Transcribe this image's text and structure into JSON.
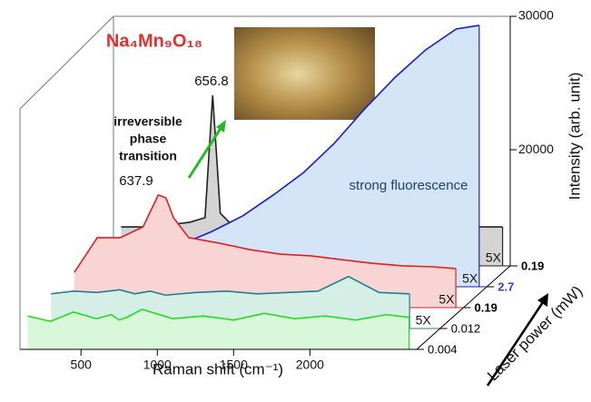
{
  "chart_data": {
    "type": "waterfall",
    "title": "Na₄Mn₉O₁₈",
    "x_label": "Raman shift (cm⁻¹)",
    "y_label": "Intensity (arb. unit)",
    "z_label": "Laser power (mW)",
    "xlim": [
      100,
      2700
    ],
    "xticks": [
      500,
      1000,
      1500,
      2000
    ],
    "ylim": [
      11300,
      30000
    ],
    "yticks": [
      20000,
      30000
    ],
    "x": [
      150,
      300,
      450,
      600,
      700,
      750,
      800,
      900,
      1100,
      1300,
      1500,
      1700,
      1900,
      2100,
      2300,
      2500,
      2650
    ],
    "series": [
      {
        "name": "0.19",
        "multiplier": "5X",
        "color": "#222222",
        "fill": "#d4d4d4",
        "label_color": "#000000",
        "values": [
          14220,
          14220,
          14360,
          14570,
          14910,
          24090,
          15250,
          14090,
          null,
          null,
          null,
          null,
          null,
          null,
          null,
          14220,
          14220
        ]
      },
      {
        "name": "2.7",
        "multiplier": "5X",
        "color": "#1a1adb",
        "fill": "#d3e5f6",
        "label_color": "#3a3ae0",
        "values": [
          null,
          null,
          null,
          null,
          15250,
          14770,
          14970,
          15450,
          16610,
          18170,
          19870,
          22050,
          24630,
          27010,
          29060,
          30620,
          30890
        ]
      },
      {
        "name": "0.19",
        "multiplier": "5X",
        "color": "#e02020",
        "fill": "#f9d4d4",
        "label_color": "#000000",
        "values": [
          13950,
          16540,
          16540,
          17350,
          19740,
          19530,
          18030,
          16540,
          16130,
          15650,
          15310,
          15180,
          14900,
          14630,
          14430,
          14360,
          14230
        ]
      },
      {
        "name": "0.012",
        "multiplier": "5X",
        "color": "#1f7f8f",
        "fill": "#d6efe6",
        "label_color": "#000000",
        "values": [
          13900,
          14100,
          14000,
          14200,
          13900,
          14000,
          14100,
          13800,
          14000,
          14100,
          13900,
          14000,
          14100,
          15200,
          14000,
          13900,
          null
        ]
      },
      {
        "name": "0.004",
        "color": "#22dd22",
        "fill": "#d9f8d9",
        "label_color": "#000000",
        "values": [
          13800,
          13400,
          14100,
          13600,
          13900,
          13500,
          13700,
          14300,
          13600,
          13800,
          13500,
          14000,
          13600,
          13800,
          13500,
          13900,
          13700
        ]
      }
    ],
    "annotations": [
      {
        "text": "656.8"
      },
      {
        "text": "637.9"
      },
      {
        "lines": [
          "irreversible",
          "phase",
          "transition"
        ]
      },
      {
        "text": "strong fluorescence"
      }
    ]
  }
}
